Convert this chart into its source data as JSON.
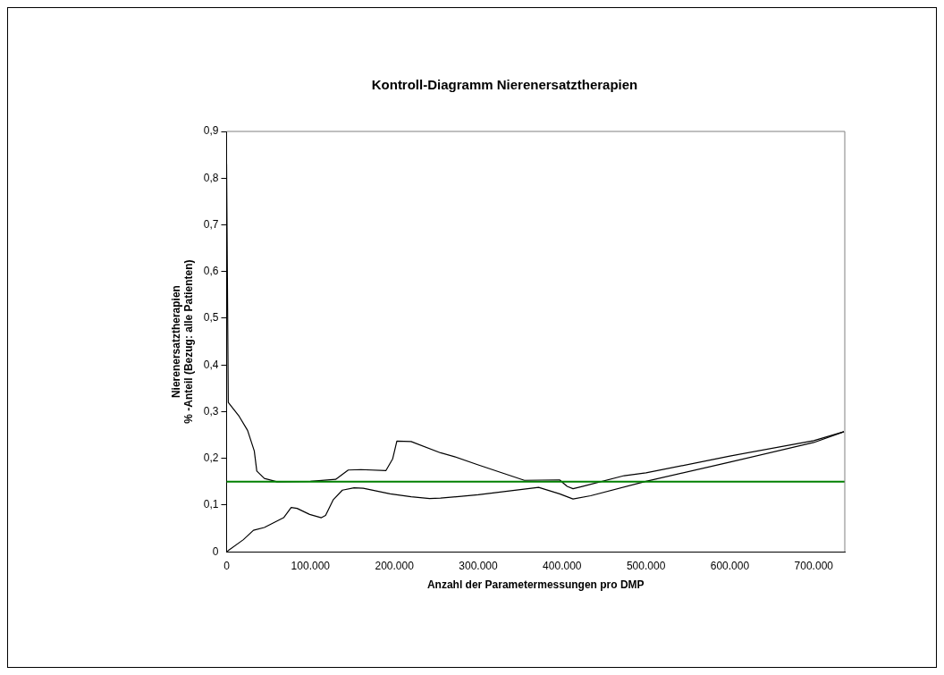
{
  "chart_data": {
    "type": "line",
    "title": "Kontroll-Diagramm Nierenersatztherapien",
    "xlabel": "Anzahl der Parametermessungen pro DMP",
    "ylabel": "Nierenersatztherapien\n% -Anteil (Bezug: alle Patienten)",
    "xlim": [
      0,
      737000
    ],
    "xticks": [
      0,
      {
        "value": 100000,
        "label": "100.000"
      },
      {
        "value": 200000,
        "label": "200.000"
      },
      {
        "value": 300000,
        "label": "300.000"
      },
      {
        "value": 400000,
        "label": "400.000"
      },
      {
        "value": 500000,
        "label": "500.000"
      },
      {
        "value": 600000,
        "label": "600.000"
      },
      {
        "value": 700000,
        "label": "700.000"
      }
    ],
    "ylim": [
      0,
      0.9
    ],
    "yticks": [
      0,
      {
        "value": 0.1,
        "label": "0,1"
      },
      {
        "value": 0.2,
        "label": "0,2"
      },
      {
        "value": 0.3,
        "label": "0,3"
      },
      {
        "value": 0.4,
        "label": "0,4"
      },
      {
        "value": 0.5,
        "label": "0,5"
      },
      {
        "value": 0.6,
        "label": "0,6"
      },
      {
        "value": 0.7,
        "label": "0,7"
      },
      {
        "value": 0.8,
        "label": "0,8"
      },
      {
        "value": 0.9,
        "label": "0,9"
      }
    ],
    "grid": false,
    "legend": false,
    "marker": "none",
    "line_style": "solid",
    "series": [
      {
        "color": "#000000",
        "x": [
          0,
          2000,
          15000,
          25000,
          33000,
          36000,
          45000,
          60000,
          100000,
          130000,
          145000,
          160000,
          190000,
          198000,
          203000,
          220000,
          255000,
          271000,
          300000,
          355000,
          397000,
          406000,
          413000,
          424000,
          474000,
          500000,
          600000,
          700000,
          736000
        ],
        "values": [
          0.83,
          0.32,
          0.29,
          0.26,
          0.216,
          0.173,
          0.157,
          0.15,
          0.151,
          0.155,
          0.175,
          0.176,
          0.174,
          0.199,
          0.237,
          0.236,
          0.212,
          0.204,
          0.186,
          0.153,
          0.154,
          0.14,
          0.135,
          0.14,
          0.163,
          0.169,
          0.205,
          0.238,
          0.257
        ]
      },
      {
        "color": "#000000",
        "x": [
          0,
          20000,
          32000,
          45000,
          68000,
          77000,
          84000,
          99000,
          113000,
          118000,
          127000,
          138000,
          152000,
          163000,
          195000,
          220000,
          242000,
          255000,
          300000,
          372000,
          397000,
          413000,
          434000,
          500000,
          600000,
          700000,
          736000
        ],
        "values": [
          0,
          0.026,
          0.046,
          0.052,
          0.073,
          0.095,
          0.093,
          0.08,
          0.073,
          0.078,
          0.111,
          0.132,
          0.137,
          0.136,
          0.124,
          0.118,
          0.114,
          0.115,
          0.122,
          0.138,
          0.124,
          0.113,
          0.12,
          0.151,
          0.192,
          0.234,
          0.257
        ]
      }
    ],
    "ref_lines": [
      {
        "axis": "y",
        "value": 0.15,
        "color": "#008000"
      }
    ]
  }
}
